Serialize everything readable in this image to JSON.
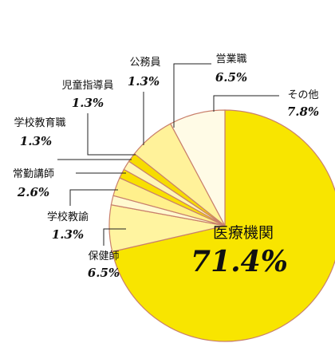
{
  "chart_data": {
    "type": "pie",
    "categories": [
      "医療機関",
      "保健師",
      "学校教諭",
      "常勤講師",
      "学校教育職",
      "児童指導員",
      "公務員",
      "営業職",
      "その他"
    ],
    "values": [
      71.4,
      6.5,
      1.3,
      2.6,
      1.3,
      1.3,
      1.3,
      6.5,
      7.8
    ],
    "value_labels": [
      "71.4%",
      "6.5%",
      "1.3%",
      "2.6%",
      "1.3%",
      "1.3%",
      "1.3%",
      "6.5%",
      "7.8%"
    ],
    "colors": [
      "#f8e500",
      "#fff4a0",
      "#fff9d0",
      "#fff08c",
      "#f8e000",
      "#fff6b8",
      "#f6dc00",
      "#fff29a",
      "#fffbe6"
    ]
  }
}
